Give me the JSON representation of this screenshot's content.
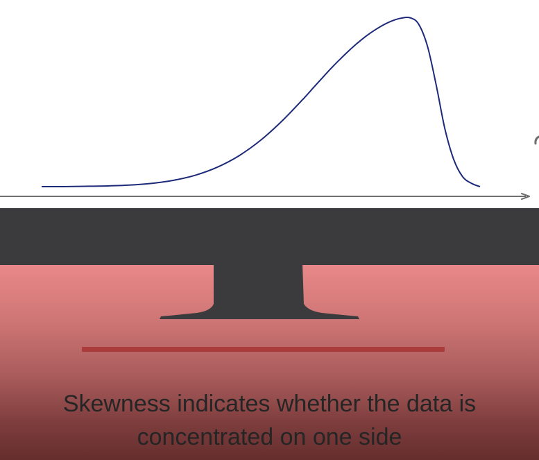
{
  "chart_data": {
    "type": "line",
    "title": "",
    "xlabel": "",
    "ylabel": "",
    "grid": false,
    "legend": "none",
    "axes": {
      "x_axis_visible": true,
      "x_axis_arrow": "right",
      "y_axis_visible": false
    },
    "xlim": [
      0,
      10
    ],
    "ylim": [
      0,
      1
    ],
    "series": [
      {
        "color": "#1d2a7a",
        "x": [
          0,
          0.5,
          1,
          1.5,
          2,
          2.5,
          3,
          3.5,
          4,
          4.5,
          5,
          5.5,
          6,
          6.2,
          6.4,
          6.6,
          6.8,
          7,
          7.2,
          7.4,
          7.6,
          7.8,
          8,
          8.2,
          8.4,
          8.6,
          8.8,
          9,
          9.2,
          9.4,
          9.6,
          9.8,
          10
        ],
        "y": [
          0.0,
          0.0,
          0.002,
          0.004,
          0.009,
          0.019,
          0.037,
          0.067,
          0.114,
          0.182,
          0.275,
          0.392,
          0.527,
          0.585,
          0.642,
          0.698,
          0.751,
          0.801,
          0.847,
          0.889,
          0.925,
          0.956,
          0.98,
          0.995,
          0.998,
          0.96,
          0.83,
          0.6,
          0.34,
          0.16,
          0.06,
          0.02,
          0.0
        ]
      }
    ]
  },
  "caption": {
    "line1": "Skewness indicates whether the data is",
    "line2": "concentrated on one side"
  },
  "colors": {
    "screen_background": "#ffffff",
    "curve": "#1d2a7a",
    "axis": "#6f6f6f",
    "bezel": "#3b3b3d",
    "stand": "#3b3b3d",
    "backdrop_top": "#e98888",
    "backdrop_bottom": "#662e2e",
    "accent_line": "#ab3a3a",
    "caption_text": "#252525"
  }
}
